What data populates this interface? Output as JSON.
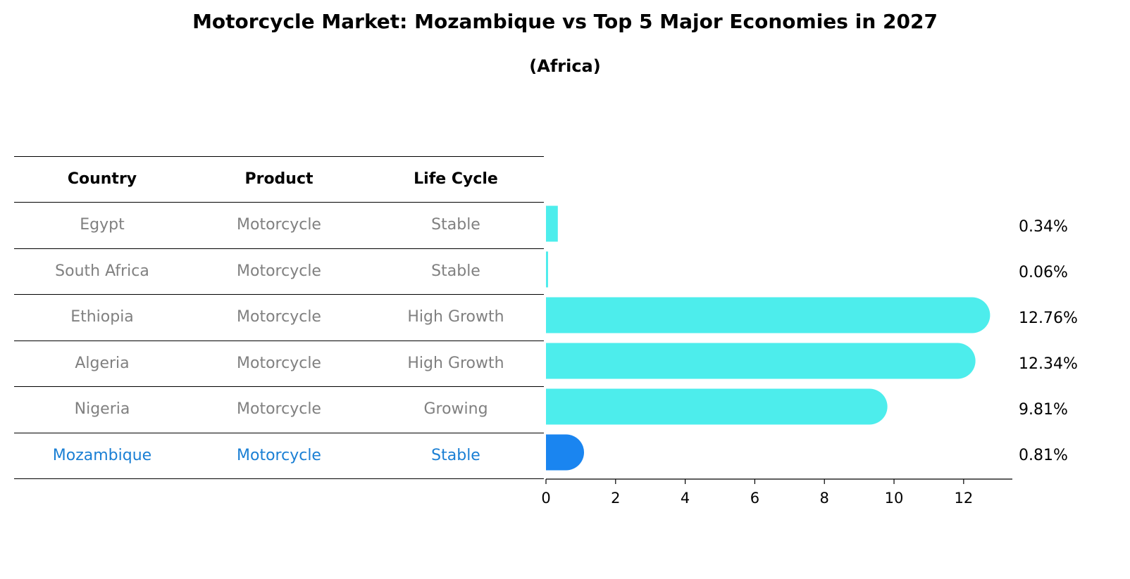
{
  "title": "Motorcycle Market: Mozambique vs Top 5 Major Economies in 2027",
  "subtitle": "(Africa)",
  "table": {
    "headers": [
      "Country",
      "Product",
      "Life Cycle"
    ],
    "rows": [
      {
        "country": "Egypt",
        "product": "Motorcycle",
        "life_cycle": "Stable",
        "highlight": false
      },
      {
        "country": "South Africa",
        "product": "Motorcycle",
        "life_cycle": "Stable",
        "highlight": false
      },
      {
        "country": "Ethiopia",
        "product": "Motorcycle",
        "life_cycle": "High Growth",
        "highlight": false
      },
      {
        "country": "Algeria",
        "product": "Motorcycle",
        "life_cycle": "High Growth",
        "highlight": false
      },
      {
        "country": "Nigeria",
        "product": "Motorcycle",
        "life_cycle": "Growing",
        "highlight": false
      },
      {
        "country": "Mozambique",
        "product": "Motorcycle",
        "life_cycle": "Stable",
        "highlight": true
      }
    ]
  },
  "colors": {
    "bar": "#4dedec",
    "highlight_bar": "#1a85f0",
    "highlight_text": "#1a7fd4",
    "row_text": "#808080"
  },
  "chart_data": {
    "type": "bar",
    "orientation": "horizontal",
    "categories": [
      "Egypt",
      "South Africa",
      "Ethiopia",
      "Algeria",
      "Nigeria",
      "Mozambique"
    ],
    "values": [
      0.34,
      0.06,
      12.76,
      12.34,
      9.81,
      0.81
    ],
    "value_labels": [
      "0.34%",
      "0.06%",
      "12.76%",
      "12.34%",
      "9.81%",
      "0.81%"
    ],
    "highlight_index": 5,
    "xlim": [
      0,
      13.4
    ],
    "xticks": [
      0,
      2,
      4,
      6,
      8,
      10,
      12
    ],
    "xlabel": "",
    "ylabel": ""
  }
}
